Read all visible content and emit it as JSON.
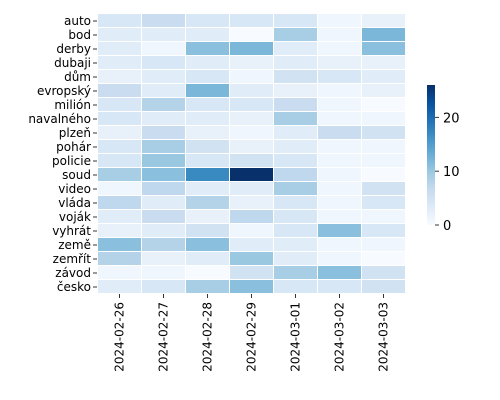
{
  "chart_data": {
    "type": "heatmap",
    "title": "",
    "xlabel": "",
    "ylabel": "",
    "rows": [
      "auto",
      "bod",
      "derby",
      "dubaji",
      "dům",
      "evropský",
      "milión",
      "navalného",
      "plzeň",
      "pohár",
      "policie",
      "soud",
      "video",
      "vláda",
      "voják",
      "vyhrát",
      "země",
      "zemřít",
      "závod",
      "česko"
    ],
    "columns": [
      "2024-02-26",
      "2024-02-27",
      "2024-02-28",
      "2024-02-29",
      "2024-03-01",
      "2024-03-02",
      "2024-03-03"
    ],
    "values": [
      [
        4,
        6,
        4,
        4,
        4,
        1,
        2
      ],
      [
        3,
        3,
        3,
        0,
        9,
        1,
        12
      ],
      [
        3,
        1,
        11,
        12,
        3,
        1,
        11
      ],
      [
        3,
        4,
        3,
        2,
        3,
        2,
        2
      ],
      [
        2,
        3,
        4,
        1,
        5,
        4,
        3
      ],
      [
        6,
        3,
        12,
        3,
        2,
        1,
        2
      ],
      [
        4,
        8,
        4,
        4,
        6,
        1,
        0
      ],
      [
        4,
        3,
        3,
        2,
        9,
        1,
        1
      ],
      [
        2,
        6,
        2,
        1,
        3,
        6,
        5
      ],
      [
        4,
        9,
        5,
        2,
        3,
        1,
        1
      ],
      [
        4,
        10,
        4,
        5,
        4,
        1,
        1
      ],
      [
        9,
        11,
        17,
        26,
        7,
        1,
        0
      ],
      [
        1,
        7,
        3,
        3,
        9,
        1,
        5
      ],
      [
        7,
        3,
        8,
        2,
        4,
        1,
        4
      ],
      [
        3,
        6,
        2,
        7,
        4,
        1,
        1
      ],
      [
        2,
        3,
        5,
        1,
        4,
        11,
        4
      ],
      [
        11,
        8,
        11,
        3,
        3,
        1,
        1
      ],
      [
        8,
        2,
        3,
        10,
        3,
        1,
        0
      ],
      [
        1,
        1,
        0,
        5,
        9,
        11,
        5
      ],
      [
        3,
        4,
        9,
        11,
        4,
        4,
        5
      ]
    ],
    "colorbar": {
      "min": 0,
      "max": 26,
      "ticks": [
        0,
        10,
        20
      ],
      "colormap": "Blues"
    },
    "grid": "white cell borders",
    "legend": "right (colorbar)"
  }
}
